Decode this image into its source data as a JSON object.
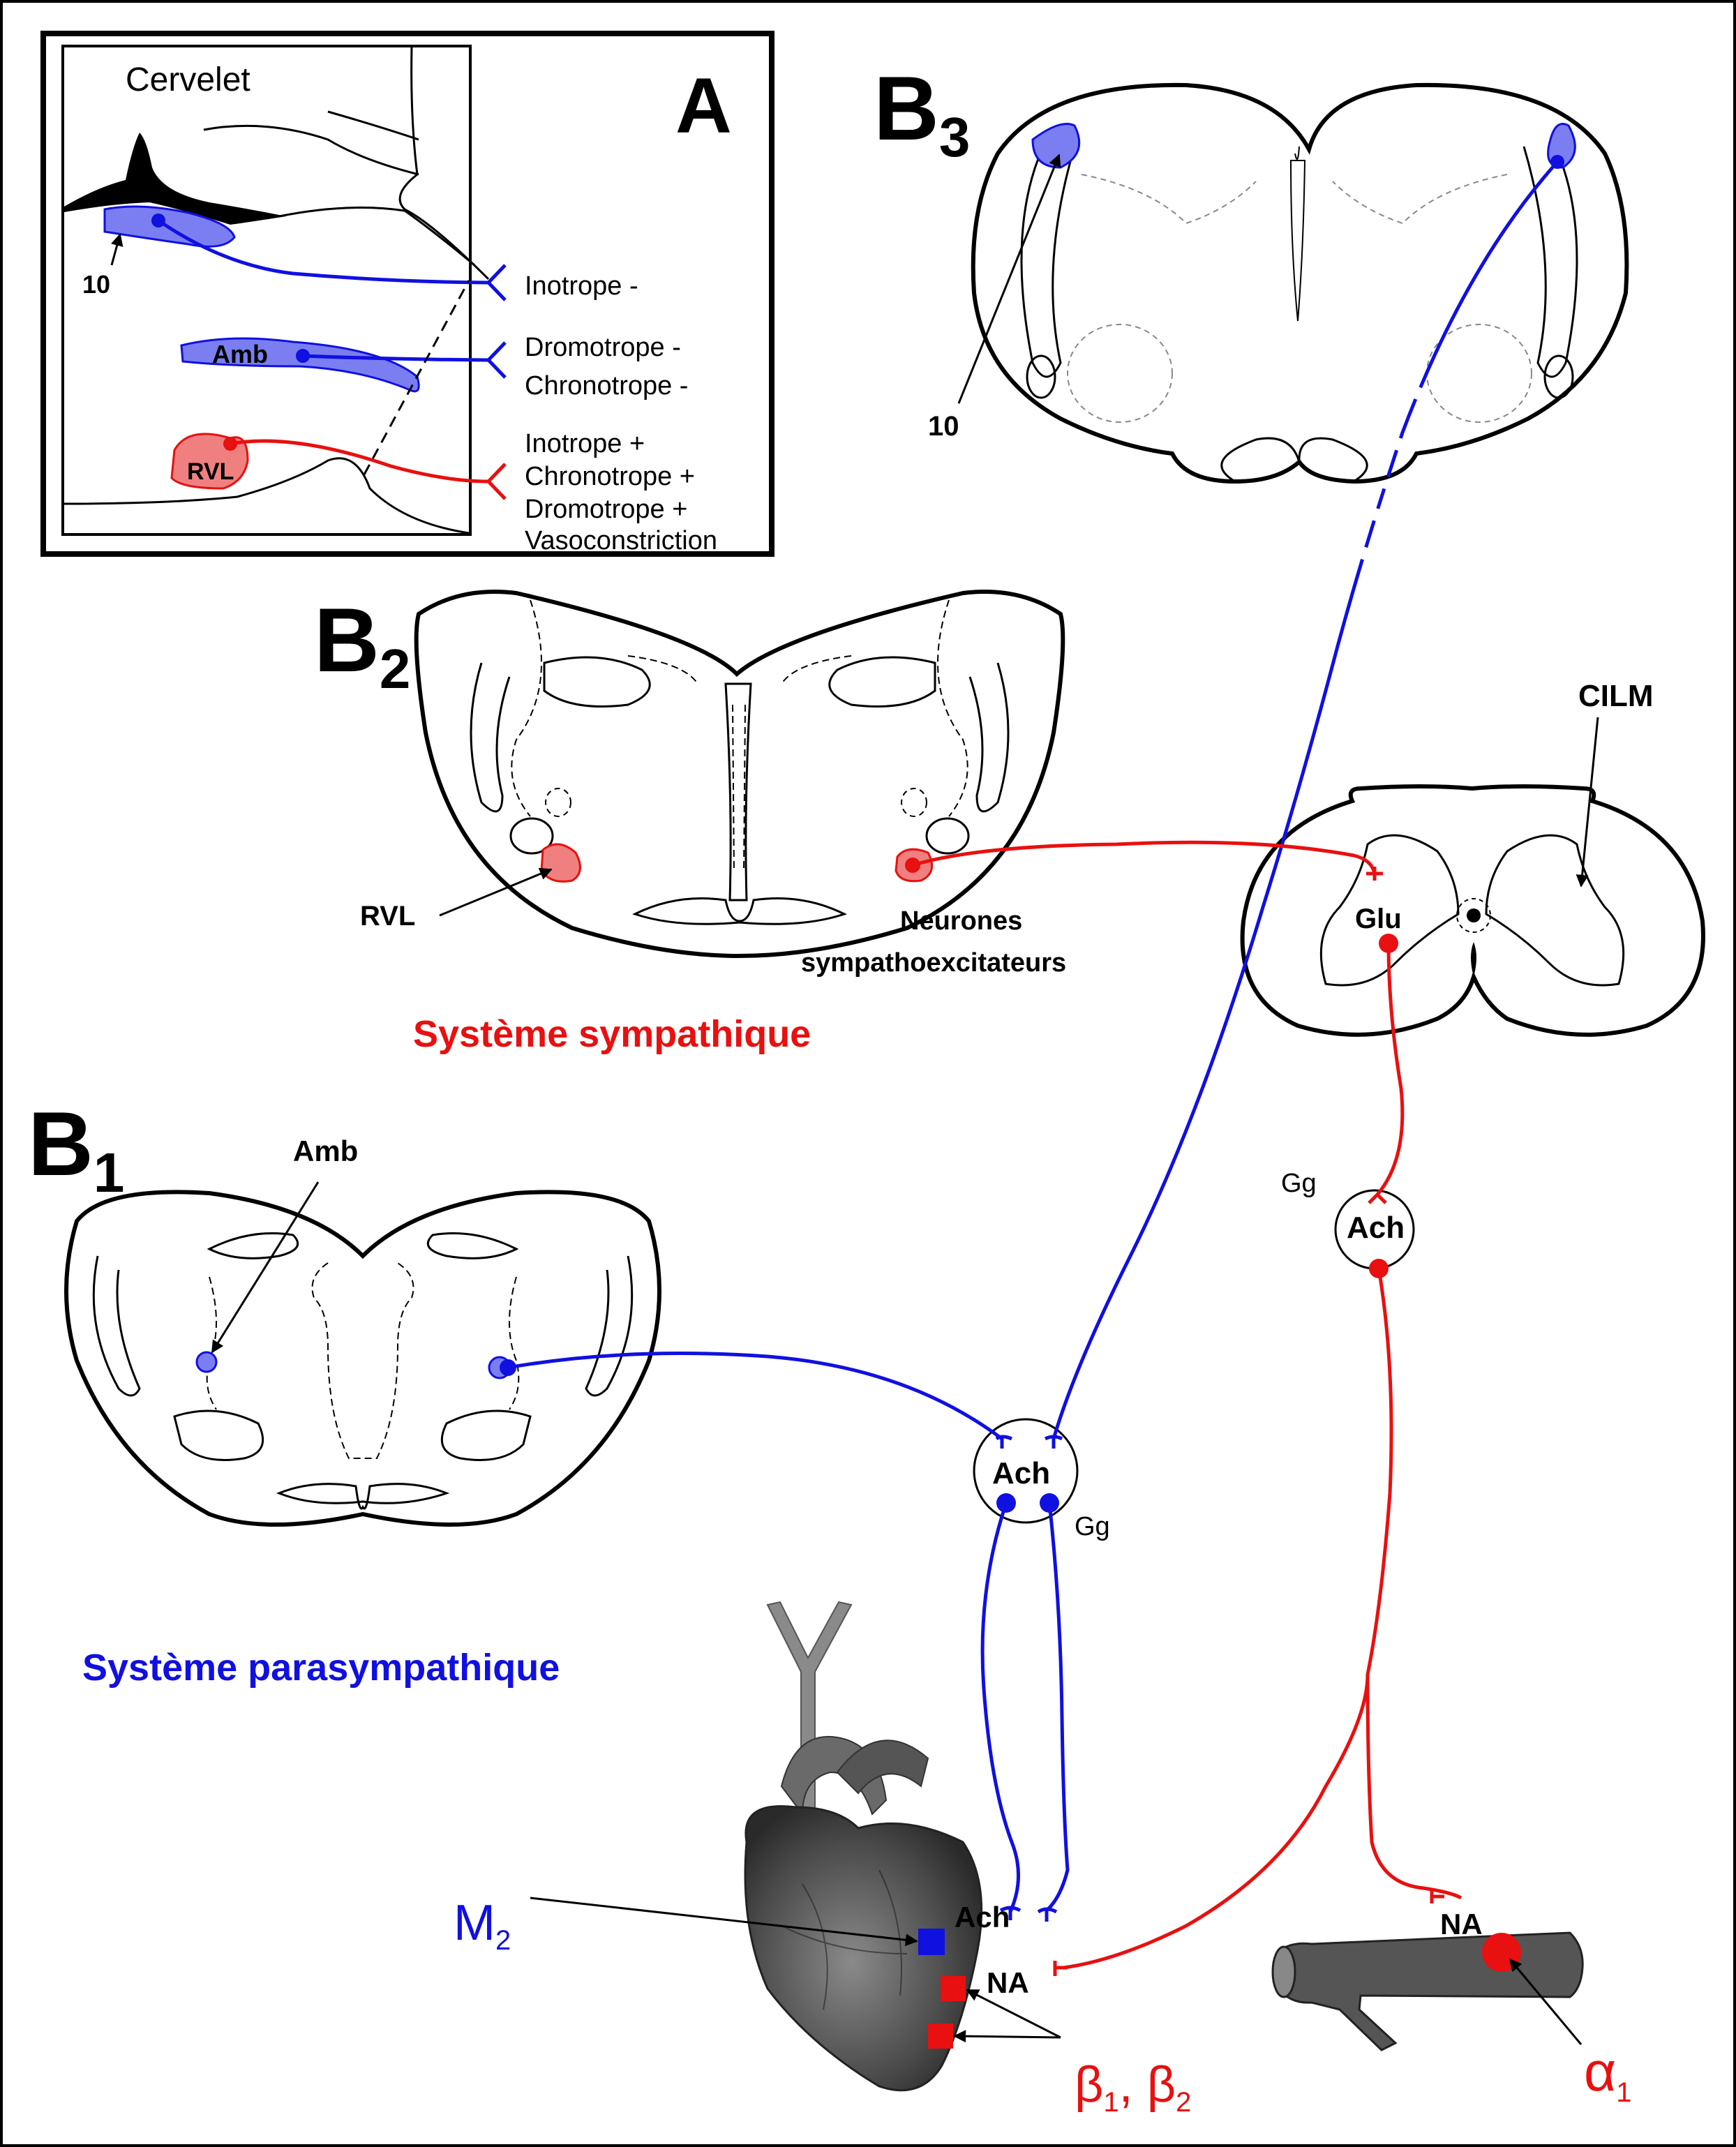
{
  "panels": {
    "a": "A",
    "b3": {
      "letter": "B",
      "sub": "3"
    },
    "b2": {
      "letter": "B",
      "sub": "2"
    },
    "b1": {
      "letter": "B",
      "sub": "1"
    }
  },
  "panel_a": {
    "cervelet": "Cervelet",
    "n10": "10",
    "amb": "Amb",
    "rvl": "RVL",
    "effects_blue": [
      "Inotrope -",
      "Dromotrope -",
      "Chronotrope -"
    ],
    "effects_red": [
      "Inotrope +",
      "Chronotrope +",
      "Dromotrope +",
      "Vasoconstriction"
    ]
  },
  "b3": {
    "n10": "10"
  },
  "b2": {
    "rvl": "RVL",
    "neurones": [
      "Neurones",
      "sympathoexcitateurs"
    ]
  },
  "b1": {
    "amb": "Amb"
  },
  "spinal": {
    "cilm": "CILM",
    "glu": "Glu"
  },
  "ganglia": {
    "symp_ach": "Ach",
    "symp_gg": "Gg",
    "para_ach": "Ach",
    "para_gg": "Gg"
  },
  "systems": {
    "sympathique": "Système sympathique",
    "parasympathique": "Système parasympathique"
  },
  "heart": {
    "ach": "Ach",
    "na": "NA",
    "m": "M",
    "m_sub": "2",
    "beta1": "β",
    "beta1_sub": "1",
    "beta_sep": ", ",
    "beta2": "β",
    "beta2_sub": "2"
  },
  "vessel": {
    "na": "NA",
    "alpha": "α",
    "alpha_sub": "1"
  },
  "colors": {
    "parasympathetic": "#1010e0",
    "sympathetic": "#e81010",
    "para_fill": "#7b7ef0",
    "symp_fill": "#f08080",
    "outline": "#000000"
  }
}
